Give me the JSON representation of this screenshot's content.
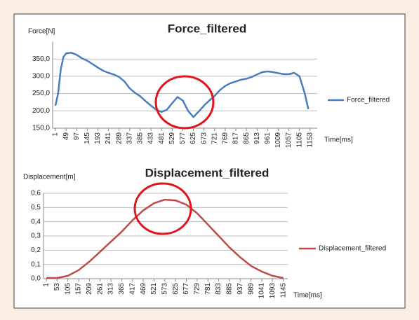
{
  "chart_data": [
    {
      "type": "line",
      "title": "Force_filtered",
      "y_label": "Force[N]",
      "x_label": "Time[ms]",
      "x": [
        1,
        13,
        25,
        37,
        49,
        73,
        97,
        121,
        145,
        169,
        193,
        217,
        241,
        265,
        289,
        313,
        337,
        361,
        385,
        409,
        433,
        457,
        481,
        505,
        529,
        553,
        577,
        601,
        625,
        649,
        673,
        697,
        721,
        745,
        769,
        793,
        817,
        841,
        865,
        889,
        913,
        937,
        961,
        985,
        1009,
        1033,
        1057,
        1081,
        1105,
        1129,
        1145
      ],
      "series": [
        {
          "name": "Force_filtered",
          "color": "#4a7ebb",
          "values": [
            215,
            250,
            320,
            355,
            366,
            368,
            362,
            352,
            345,
            335,
            325,
            316,
            310,
            305,
            298,
            285,
            265,
            252,
            242,
            228,
            215,
            203,
            197,
            203,
            222,
            240,
            230,
            200,
            182,
            198,
            215,
            230,
            243,
            260,
            272,
            280,
            285,
            290,
            293,
            298,
            305,
            312,
            314,
            312,
            309,
            306,
            306,
            310,
            300,
            250,
            205
          ]
        }
      ],
      "xlim": [
        1,
        1198
      ],
      "xticks": [
        1,
        49,
        97,
        145,
        193,
        241,
        289,
        337,
        385,
        433,
        481,
        529,
        577,
        625,
        673,
        721,
        769,
        817,
        865,
        913,
        961,
        1009,
        1057,
        1105,
        1153
      ],
      "ylim": [
        150,
        400
      ],
      "yticks": [
        {
          "value": 150,
          "label": "150,0"
        },
        {
          "value": 200,
          "label": "200,0"
        },
        {
          "value": 250,
          "label": "250,0"
        },
        {
          "value": 300,
          "label": "300,0"
        },
        {
          "value": 350,
          "label": "350,0"
        }
      ],
      "grid": true,
      "legend": "right"
    },
    {
      "type": "line",
      "title": "Displacement_filtered",
      "y_label": "Displacement[m]",
      "x_label": "Time[ms]",
      "x": [
        1,
        53,
        105,
        157,
        209,
        261,
        313,
        365,
        417,
        469,
        521,
        573,
        625,
        677,
        729,
        781,
        833,
        885,
        937,
        989,
        1041,
        1093,
        1145
      ],
      "series": [
        {
          "name": "Displacement_filtered",
          "color": "#be4b48",
          "values": [
            0.005,
            0.005,
            0.02,
            0.06,
            0.12,
            0.19,
            0.26,
            0.33,
            0.41,
            0.48,
            0.53,
            0.555,
            0.55,
            0.52,
            0.46,
            0.38,
            0.3,
            0.22,
            0.15,
            0.09,
            0.05,
            0.02,
            0.005
          ]
        }
      ],
      "xlim": [
        1,
        1180
      ],
      "xticks": [
        1,
        53,
        105,
        157,
        209,
        261,
        313,
        365,
        417,
        469,
        521,
        573,
        625,
        677,
        729,
        781,
        833,
        885,
        937,
        989,
        1041,
        1093,
        1145
      ],
      "ylim": [
        0,
        0.6
      ],
      "yticks": [
        {
          "value": 0,
          "label": "0,0"
        },
        {
          "value": 0.1,
          "label": "0,1"
        },
        {
          "value": 0.2,
          "label": "0,2"
        },
        {
          "value": 0.3,
          "label": "0,3"
        },
        {
          "value": 0.4,
          "label": "0,4"
        },
        {
          "value": 0.5,
          "label": "0,5"
        },
        {
          "value": 0.6,
          "label": "0,6"
        }
      ],
      "grid": true,
      "legend": "right"
    }
  ]
}
